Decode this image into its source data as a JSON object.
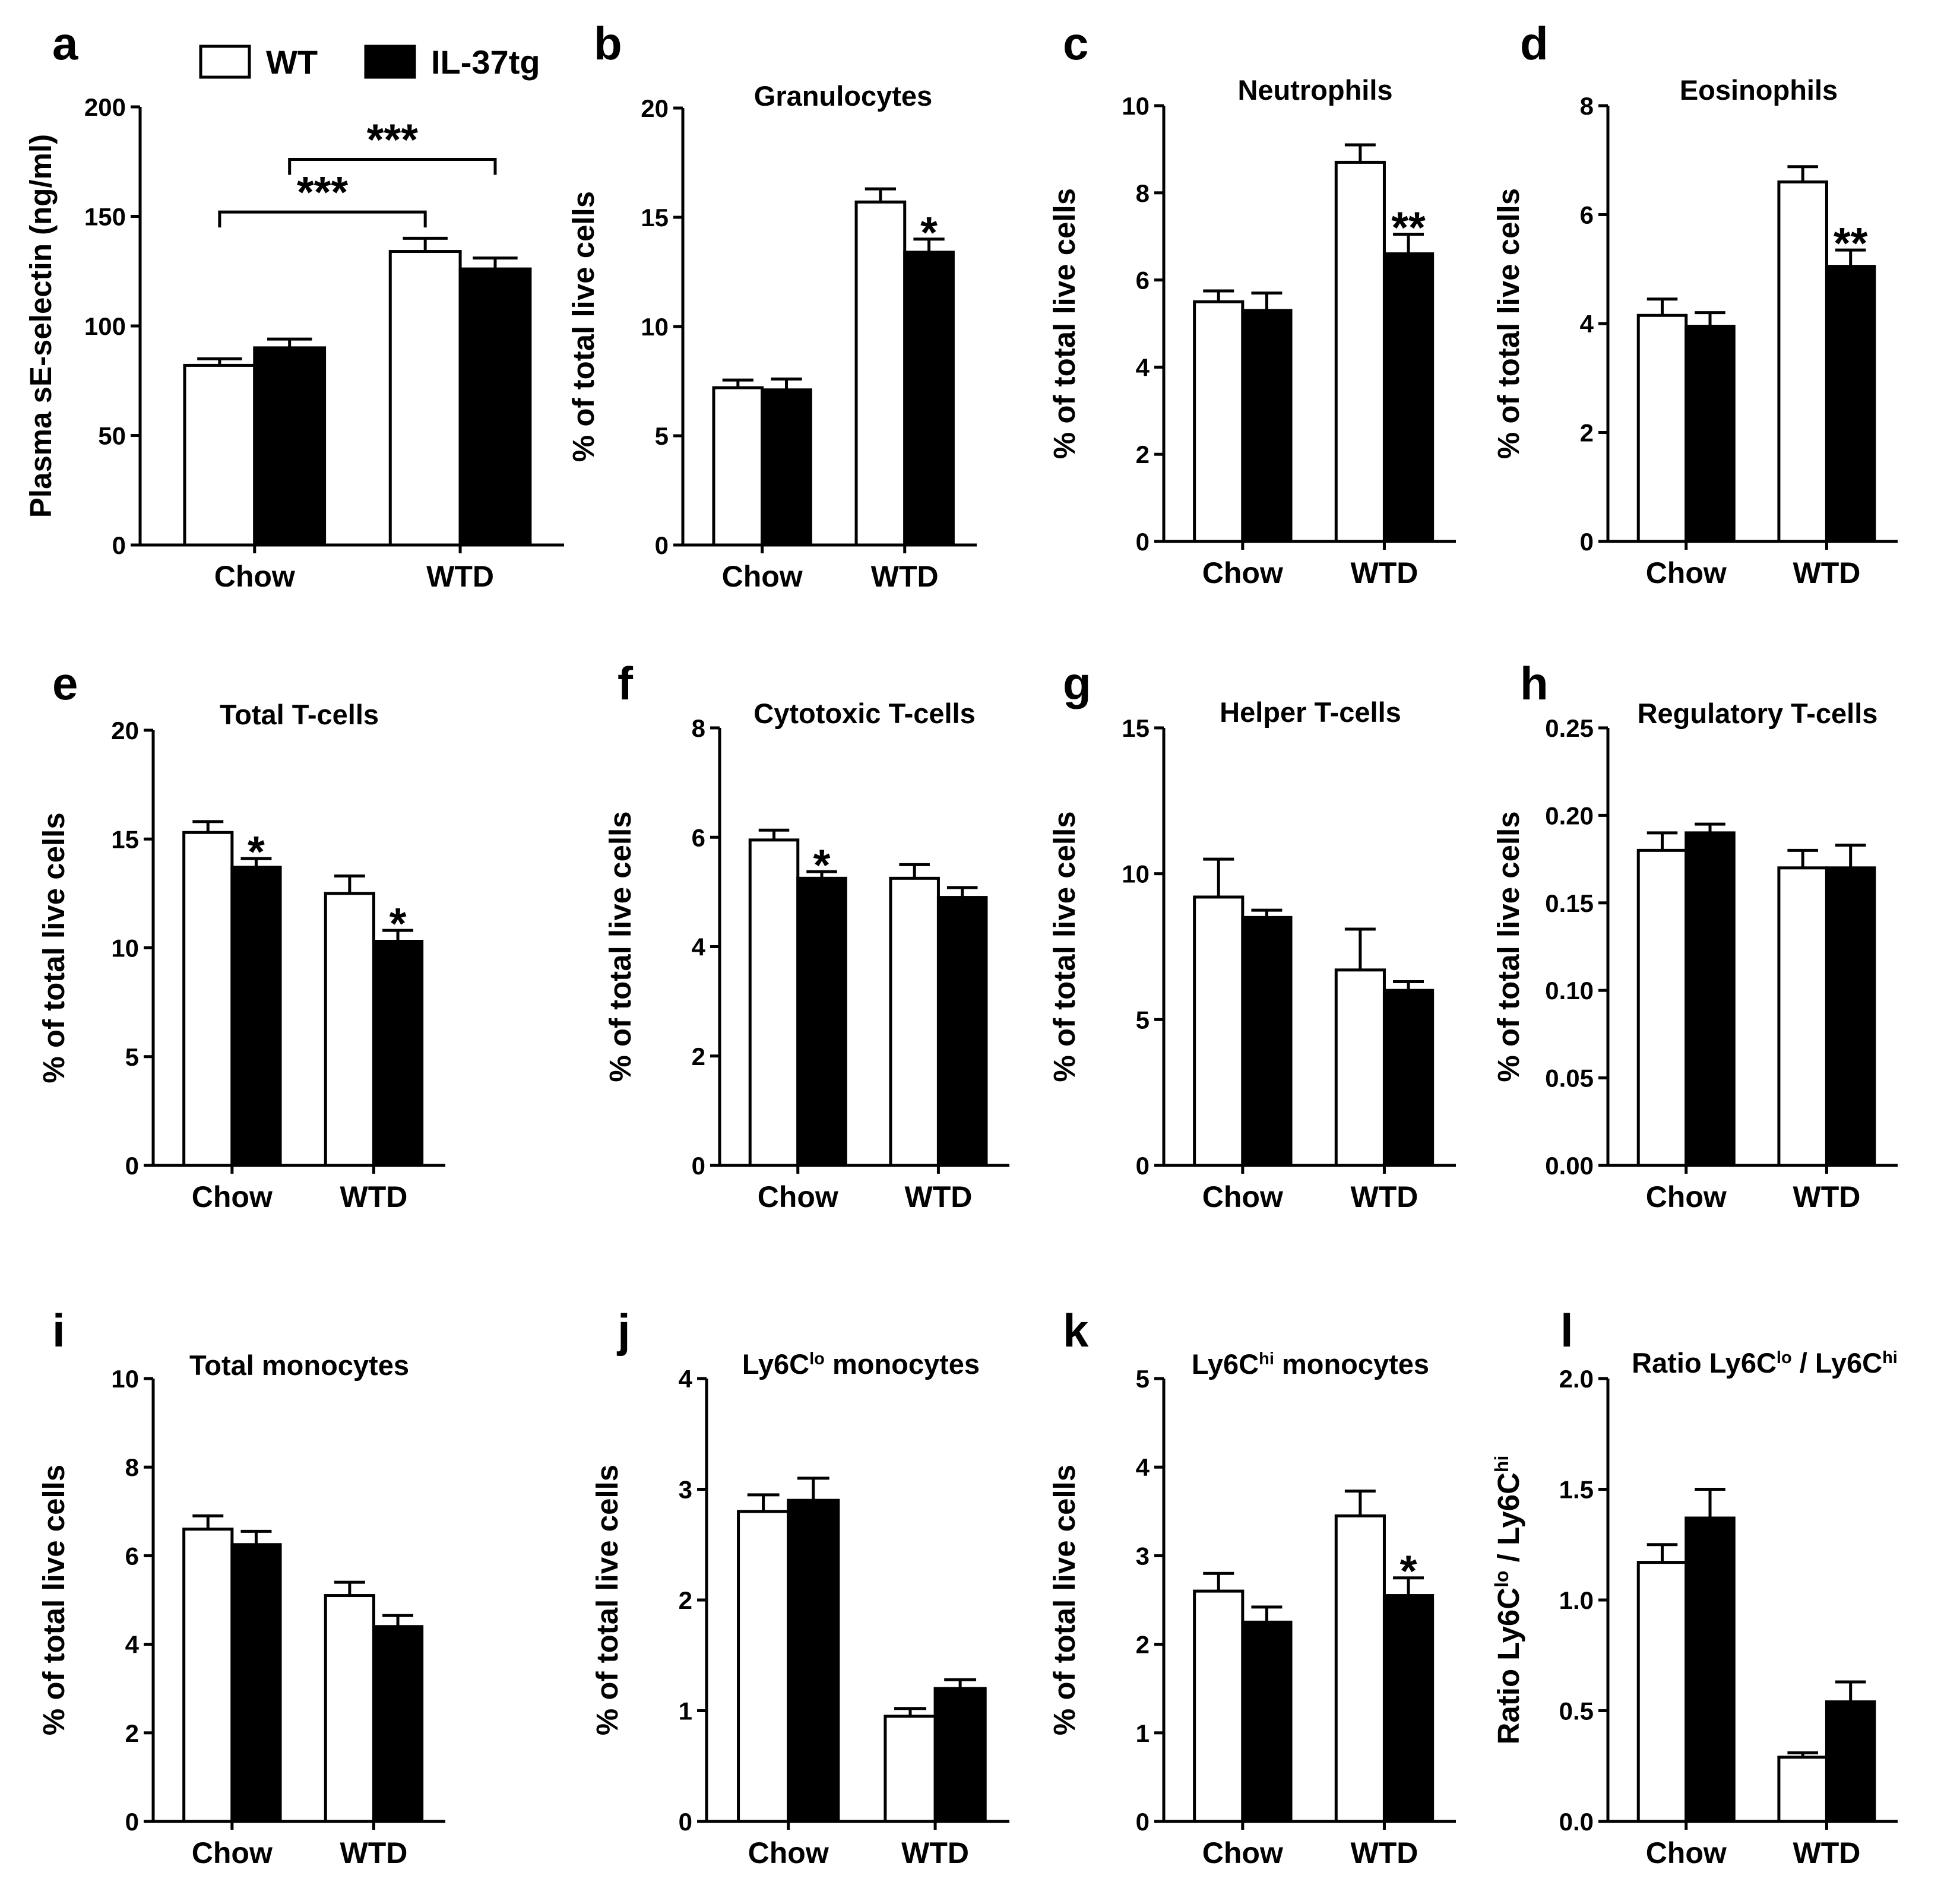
{
  "legend": [
    {
      "label": "WT",
      "color": "#ffffff"
    },
    {
      "label": "IL-37tg",
      "color": "#000000"
    }
  ],
  "chart_data": [
    {
      "id": "a",
      "panel_label": "a",
      "type": "bar",
      "title": "",
      "ylabel": "Plasma sE-selectin (ng/ml)",
      "ylim": [
        0,
        200
      ],
      "yticks": [
        "0",
        "50",
        "100",
        "150",
        "200"
      ],
      "categories": [
        "Chow",
        "WTD"
      ],
      "series": [
        {
          "name": "WT",
          "values": [
            82,
            134
          ],
          "errors": [
            3,
            6
          ]
        },
        {
          "name": "IL-37tg",
          "values": [
            90,
            126
          ],
          "errors": [
            4,
            5
          ]
        }
      ],
      "annotations": [],
      "brackets": [
        {
          "from": [
            0,
            0
          ],
          "to": [
            1,
            0
          ],
          "label": "***"
        },
        {
          "from": [
            0,
            1
          ],
          "to": [
            1,
            1
          ],
          "label": "***"
        }
      ]
    },
    {
      "id": "b",
      "panel_label": "b",
      "type": "bar",
      "title": "Granulocytes",
      "ylabel": "% of total live cells",
      "ylim": [
        0,
        20
      ],
      "yticks": [
        "0",
        "5",
        "10",
        "15",
        "20"
      ],
      "categories": [
        "Chow",
        "WTD"
      ],
      "series": [
        {
          "name": "WT",
          "values": [
            7.2,
            15.7
          ],
          "errors": [
            0.35,
            0.6
          ]
        },
        {
          "name": "IL-37tg",
          "values": [
            7.1,
            13.4
          ],
          "errors": [
            0.5,
            0.6
          ]
        }
      ],
      "annotations": [
        {
          "category": 1,
          "series": 1,
          "label": "*"
        }
      ],
      "brackets": []
    },
    {
      "id": "c",
      "panel_label": "c",
      "type": "bar",
      "title": "Neutrophils",
      "ylabel": "% of total live cells",
      "ylim": [
        0,
        10
      ],
      "yticks": [
        "0",
        "2",
        "4",
        "6",
        "8",
        "10"
      ],
      "categories": [
        "Chow",
        "WTD"
      ],
      "series": [
        {
          "name": "WT",
          "values": [
            5.5,
            8.7
          ],
          "errors": [
            0.25,
            0.4
          ]
        },
        {
          "name": "IL-37tg",
          "values": [
            5.3,
            6.6
          ],
          "errors": [
            0.4,
            0.45
          ]
        }
      ],
      "annotations": [
        {
          "category": 1,
          "series": 1,
          "label": "**"
        }
      ],
      "brackets": []
    },
    {
      "id": "d",
      "panel_label": "d",
      "type": "bar",
      "title": "Eosinophils",
      "ylabel": "% of total live cells",
      "ylim": [
        0,
        8
      ],
      "yticks": [
        "0",
        "2",
        "4",
        "6",
        "8"
      ],
      "categories": [
        "Chow",
        "WTD"
      ],
      "series": [
        {
          "name": "WT",
          "values": [
            4.15,
            6.6
          ],
          "errors": [
            0.3,
            0.28
          ]
        },
        {
          "name": "IL-37tg",
          "values": [
            3.95,
            5.05
          ],
          "errors": [
            0.25,
            0.3
          ]
        }
      ],
      "annotations": [
        {
          "category": 1,
          "series": 1,
          "label": "**"
        }
      ],
      "brackets": []
    },
    {
      "id": "e",
      "panel_label": "e",
      "type": "bar",
      "title": "Total T-cells",
      "ylabel": "% of total live cells",
      "ylim": [
        0,
        20
      ],
      "yticks": [
        "0",
        "5",
        "10",
        "15",
        "20"
      ],
      "categories": [
        "Chow",
        "WTD"
      ],
      "series": [
        {
          "name": "WT",
          "values": [
            15.3,
            12.5
          ],
          "errors": [
            0.5,
            0.8
          ]
        },
        {
          "name": "IL-37tg",
          "values": [
            13.7,
            10.3
          ],
          "errors": [
            0.4,
            0.5
          ]
        }
      ],
      "annotations": [
        {
          "category": 0,
          "series": 1,
          "label": "*"
        },
        {
          "category": 1,
          "series": 1,
          "label": "*"
        }
      ],
      "brackets": []
    },
    {
      "id": "f",
      "panel_label": "f",
      "type": "bar",
      "title": "Cytotoxic T-cells",
      "ylabel": "% of total live cells",
      "ylim": [
        0,
        8
      ],
      "yticks": [
        "0",
        "2",
        "4",
        "6",
        "8"
      ],
      "categories": [
        "Chow",
        "WTD"
      ],
      "series": [
        {
          "name": "WT",
          "values": [
            5.95,
            5.25
          ],
          "errors": [
            0.18,
            0.25
          ]
        },
        {
          "name": "IL-37tg",
          "values": [
            5.25,
            4.9
          ],
          "errors": [
            0.12,
            0.18
          ]
        }
      ],
      "annotations": [
        {
          "category": 0,
          "series": 1,
          "label": "*"
        }
      ],
      "brackets": []
    },
    {
      "id": "g",
      "panel_label": "g",
      "type": "bar",
      "title": "Helper T-cells",
      "ylabel": "% of total live cells",
      "ylim": [
        0,
        15
      ],
      "yticks": [
        "0",
        "5",
        "10",
        "15"
      ],
      "categories": [
        "Chow",
        "WTD"
      ],
      "series": [
        {
          "name": "WT",
          "values": [
            9.2,
            6.7
          ],
          "errors": [
            1.3,
            1.4
          ]
        },
        {
          "name": "IL-37tg",
          "values": [
            8.5,
            6.0
          ],
          "errors": [
            0.25,
            0.3
          ]
        }
      ],
      "annotations": [],
      "brackets": []
    },
    {
      "id": "h",
      "panel_label": "h",
      "type": "bar",
      "title": "Regulatory T-cells",
      "ylabel": "% of total live cells",
      "ylim": [
        0,
        0.25
      ],
      "yticks": [
        "0.00",
        "0.05",
        "0.10",
        "0.15",
        "0.20",
        "0.25"
      ],
      "categories": [
        "Chow",
        "WTD"
      ],
      "series": [
        {
          "name": "WT",
          "values": [
            0.18,
            0.17
          ],
          "errors": [
            0.01,
            0.01
          ]
        },
        {
          "name": "IL-37tg",
          "values": [
            0.19,
            0.17
          ],
          "errors": [
            0.005,
            0.013
          ]
        }
      ],
      "annotations": [],
      "brackets": []
    },
    {
      "id": "i",
      "panel_label": "i",
      "type": "bar",
      "title": "Total monocytes",
      "ylabel": "% of total live cells",
      "ylim": [
        0,
        10
      ],
      "yticks": [
        "0",
        "2",
        "4",
        "6",
        "8",
        "10"
      ],
      "categories": [
        "Chow",
        "WTD"
      ],
      "series": [
        {
          "name": "WT",
          "values": [
            6.6,
            5.1
          ],
          "errors": [
            0.3,
            0.3
          ]
        },
        {
          "name": "IL-37tg",
          "values": [
            6.25,
            4.4
          ],
          "errors": [
            0.3,
            0.25
          ]
        }
      ],
      "annotations": [],
      "brackets": []
    },
    {
      "id": "j",
      "panel_label": "j",
      "type": "bar",
      "title": "",
      "title_rich": [
        {
          "t": "Ly6C"
        },
        {
          "t": "lo",
          "sup": true
        },
        {
          "t": " monocytes"
        }
      ],
      "ylabel": "% of total live cells",
      "ylim": [
        0,
        4
      ],
      "yticks": [
        "0",
        "1",
        "2",
        "3",
        "4"
      ],
      "categories": [
        "Chow",
        "WTD"
      ],
      "series": [
        {
          "name": "WT",
          "values": [
            2.8,
            0.95
          ],
          "errors": [
            0.15,
            0.07
          ]
        },
        {
          "name": "IL-37tg",
          "values": [
            2.9,
            1.2
          ],
          "errors": [
            0.2,
            0.08
          ]
        }
      ],
      "annotations": [],
      "brackets": []
    },
    {
      "id": "k",
      "panel_label": "k",
      "type": "bar",
      "title": "",
      "title_rich": [
        {
          "t": "Ly6C"
        },
        {
          "t": "hi",
          "sup": true
        },
        {
          "t": " monocytes"
        }
      ],
      "ylabel": "% of total live cells",
      "ylim": [
        0,
        5
      ],
      "yticks": [
        "0",
        "1",
        "2",
        "3",
        "4",
        "5"
      ],
      "categories": [
        "Chow",
        "WTD"
      ],
      "series": [
        {
          "name": "WT",
          "values": [
            2.6,
            3.45
          ],
          "errors": [
            0.2,
            0.28
          ]
        },
        {
          "name": "IL-37tg",
          "values": [
            2.25,
            2.55
          ],
          "errors": [
            0.17,
            0.2
          ]
        }
      ],
      "annotations": [
        {
          "category": 1,
          "series": 1,
          "label": "*"
        }
      ],
      "brackets": []
    },
    {
      "id": "l",
      "panel_label": "l",
      "type": "bar",
      "title": "",
      "title_rich": [
        {
          "t": "Ratio Ly6C"
        },
        {
          "t": "lo",
          "sup": true
        },
        {
          "t": " /  Ly6C"
        },
        {
          "t": "hi",
          "sup": true
        }
      ],
      "ylabel": "",
      "ylabel_rich": [
        {
          "t": "Ratio Ly6C"
        },
        {
          "t": "lo",
          "sup": true
        },
        {
          "t": " / Ly6C"
        },
        {
          "t": "hi",
          "sup": true
        }
      ],
      "ylim": [
        0,
        2.0
      ],
      "yticks": [
        "0.0",
        "0.5",
        "1.0",
        "1.5",
        "2.0"
      ],
      "categories": [
        "Chow",
        "WTD"
      ],
      "series": [
        {
          "name": "WT",
          "values": [
            1.17,
            0.29
          ],
          "errors": [
            0.08,
            0.02
          ]
        },
        {
          "name": "IL-37tg",
          "values": [
            1.37,
            0.54
          ],
          "errors": [
            0.13,
            0.09
          ]
        }
      ],
      "annotations": [],
      "brackets": []
    }
  ]
}
